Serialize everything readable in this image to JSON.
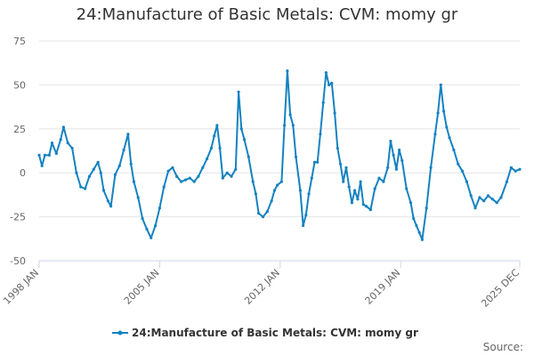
{
  "chart_title": "24:Manufacture of Basic Metals: CVM: momy gr",
  "source_label": "Source:",
  "colors": {
    "series": "#1582c1",
    "grid": "#e6e6e6",
    "axis": "#ccd6eb",
    "text": "#333333",
    "tick": "#666666"
  },
  "chart_data": {
    "type": "line",
    "title": "24:Manufacture of Basic Metals: CVM: momy gr",
    "xlabel": "",
    "ylabel": "",
    "ylim": [
      -50,
      75
    ],
    "yticks": [
      -50,
      -25,
      0,
      25,
      50,
      75
    ],
    "xlim": [
      "1998-01",
      "2025-12"
    ],
    "xtick_labels": [
      "1998 JAN",
      "2005 JAN",
      "2012 JAN",
      "2019 JAN",
      "2025 DEC"
    ],
    "xtick_dates": [
      "1998-01",
      "2005-01",
      "2012-01",
      "2019-01",
      "2025-12"
    ],
    "grid": true,
    "legend_position": "bottom-center",
    "series": [
      {
        "name": "24:Manufacture of Basic Metals: CVM: momy gr",
        "points": [
          [
            "1998-01",
            10
          ],
          [
            "1998-03",
            4
          ],
          [
            "1998-05",
            10
          ],
          [
            "1998-08",
            10
          ],
          [
            "1998-10",
            17
          ],
          [
            "1999-01",
            11
          ],
          [
            "1999-04",
            19
          ],
          [
            "1999-06",
            26
          ],
          [
            "1999-09",
            17
          ],
          [
            "1999-12",
            14
          ],
          [
            "2000-03",
            0
          ],
          [
            "2000-06",
            -8
          ],
          [
            "2000-09",
            -9
          ],
          [
            "2000-12",
            -2
          ],
          [
            "2001-03",
            2
          ],
          [
            "2001-06",
            6
          ],
          [
            "2001-08",
            0
          ],
          [
            "2001-10",
            -10
          ],
          [
            "2002-01",
            -16
          ],
          [
            "2002-03",
            -19
          ],
          [
            "2002-06",
            -1
          ],
          [
            "2002-09",
            4
          ],
          [
            "2002-12",
            13
          ],
          [
            "2003-03",
            22
          ],
          [
            "2003-05",
            5
          ],
          [
            "2003-07",
            -5
          ],
          [
            "2003-10",
            -14
          ],
          [
            "2004-01",
            -26
          ],
          [
            "2004-04",
            -32
          ],
          [
            "2004-07",
            -37
          ],
          [
            "2004-10",
            -30
          ],
          [
            "2005-01",
            -20
          ],
          [
            "2005-04",
            -8
          ],
          [
            "2005-07",
            1
          ],
          [
            "2005-10",
            3
          ],
          [
            "2006-01",
            -2
          ],
          [
            "2006-04",
            -5
          ],
          [
            "2006-07",
            -4
          ],
          [
            "2006-10",
            -3
          ],
          [
            "2007-01",
            -5
          ],
          [
            "2007-04",
            -2
          ],
          [
            "2007-07",
            3
          ],
          [
            "2007-10",
            8
          ],
          [
            "2008-01",
            14
          ],
          [
            "2008-03",
            21
          ],
          [
            "2008-05",
            27
          ],
          [
            "2008-07",
            14
          ],
          [
            "2008-09",
            -3
          ],
          [
            "2008-12",
            0
          ],
          [
            "2009-03",
            -2
          ],
          [
            "2009-06",
            2
          ],
          [
            "2009-08",
            46
          ],
          [
            "2009-10",
            25
          ],
          [
            "2009-12",
            19
          ],
          [
            "2010-03",
            9
          ],
          [
            "2010-06",
            -5
          ],
          [
            "2010-08",
            -12
          ],
          [
            "2010-10",
            -23
          ],
          [
            "2011-01",
            -25
          ],
          [
            "2011-04",
            -22
          ],
          [
            "2011-07",
            -16
          ],
          [
            "2011-09",
            -10
          ],
          [
            "2011-11",
            -7
          ],
          [
            "2012-02",
            -5
          ],
          [
            "2012-04",
            27
          ],
          [
            "2012-06",
            58
          ],
          [
            "2012-08",
            33
          ],
          [
            "2012-10",
            27
          ],
          [
            "2012-12",
            9
          ],
          [
            "2013-03",
            -10
          ],
          [
            "2013-05",
            -30
          ],
          [
            "2013-07",
            -24
          ],
          [
            "2013-09",
            -12
          ],
          [
            "2013-11",
            -3
          ],
          [
            "2014-01",
            6
          ],
          [
            "2014-03",
            6
          ],
          [
            "2014-05",
            22
          ],
          [
            "2014-07",
            40
          ],
          [
            "2014-09",
            57
          ],
          [
            "2014-11",
            50
          ],
          [
            "2015-01",
            51
          ],
          [
            "2015-03",
            34
          ],
          [
            "2015-05",
            14
          ],
          [
            "2015-07",
            5
          ],
          [
            "2015-09",
            -5
          ],
          [
            "2015-11",
            3
          ],
          [
            "2016-01",
            -8
          ],
          [
            "2016-03",
            -17
          ],
          [
            "2016-05",
            -10
          ],
          [
            "2016-07",
            -15
          ],
          [
            "2016-09",
            -5
          ],
          [
            "2016-11",
            -18
          ],
          [
            "2017-01",
            -19
          ],
          [
            "2017-04",
            -21
          ],
          [
            "2017-07",
            -9
          ],
          [
            "2017-10",
            -3
          ],
          [
            "2018-01",
            -5
          ],
          [
            "2018-04",
            3
          ],
          [
            "2018-06",
            18
          ],
          [
            "2018-08",
            10
          ],
          [
            "2018-10",
            2
          ],
          [
            "2018-12",
            13
          ],
          [
            "2019-02",
            7
          ],
          [
            "2019-05",
            -9
          ],
          [
            "2019-08",
            -17
          ],
          [
            "2019-10",
            -26
          ],
          [
            "2019-12",
            -30
          ],
          [
            "2020-02",
            -34
          ],
          [
            "2020-04",
            -38
          ],
          [
            "2020-07",
            -20
          ],
          [
            "2020-10",
            3
          ],
          [
            "2021-01",
            22
          ],
          [
            "2021-03",
            34
          ],
          [
            "2021-05",
            50
          ],
          [
            "2021-07",
            35
          ],
          [
            "2021-09",
            26
          ],
          [
            "2021-11",
            20
          ],
          [
            "2022-02",
            13
          ],
          [
            "2022-05",
            5
          ],
          [
            "2022-08",
            1
          ],
          [
            "2022-11",
            -5
          ],
          [
            "2023-02",
            -13
          ],
          [
            "2023-05",
            -20
          ],
          [
            "2023-08",
            -14
          ],
          [
            "2023-11",
            -16
          ],
          [
            "2024-02",
            -13
          ],
          [
            "2024-05",
            -15
          ],
          [
            "2024-08",
            -17
          ],
          [
            "2024-11",
            -14
          ],
          [
            "2025-03",
            -5
          ],
          [
            "2025-06",
            3
          ],
          [
            "2025-09",
            1
          ],
          [
            "2025-12",
            2
          ]
        ]
      }
    ]
  }
}
